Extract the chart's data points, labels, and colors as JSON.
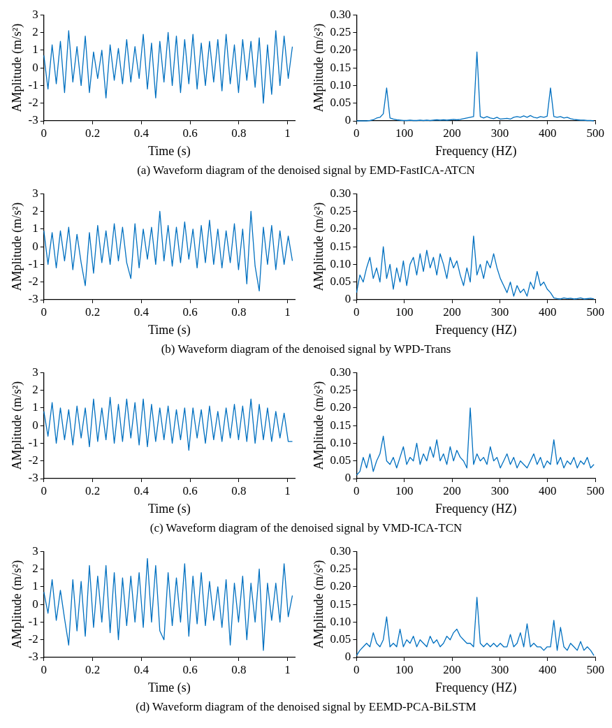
{
  "chart_data": [
    {
      "type": "line",
      "color": "#0070c0",
      "marker": "none",
      "xlabel": "Time (s)",
      "ylabel": "AMplitude (m/s²)",
      "xlim": [
        0,
        1.03
      ],
      "ylim": [
        -3,
        3
      ],
      "xticks": [
        0,
        0.2,
        0.4,
        0.6,
        0.8,
        1
      ],
      "yticks": [
        -3,
        -2,
        -1,
        0,
        1,
        2,
        3
      ],
      "annotations": [
        "(a) Waveform diagram of the denoised signal by EMD-FastICA-ATCN"
      ],
      "x": [
        0,
        0.017,
        0.034,
        0.051,
        0.068,
        0.085,
        0.102,
        0.119,
        0.136,
        0.153,
        0.17,
        0.187,
        0.204,
        0.221,
        0.238,
        0.255,
        0.272,
        0.289,
        0.306,
        0.323,
        0.34,
        0.357,
        0.374,
        0.391,
        0.408,
        0.425,
        0.442,
        0.459,
        0.476,
        0.493,
        0.51,
        0.527,
        0.544,
        0.561,
        0.578,
        0.595,
        0.612,
        0.629,
        0.646,
        0.663,
        0.68,
        0.697,
        0.714,
        0.731,
        0.748,
        0.765,
        0.782,
        0.799,
        0.816,
        0.833,
        0.85,
        0.867,
        0.884,
        0.901,
        0.918,
        0.935,
        0.952,
        0.969,
        0.986,
        1.003,
        1.02
      ],
      "values": [
        0.7,
        -1.2,
        1.3,
        -0.9,
        1.5,
        -1.4,
        2.1,
        -0.8,
        1.2,
        -1.0,
        1.8,
        -1.4,
        0.9,
        -0.6,
        1.0,
        -1.7,
        1.3,
        -0.7,
        1.1,
        -0.9,
        1.6,
        -0.8,
        1.2,
        -0.6,
        1.9,
        -1.2,
        1.4,
        -1.7,
        1.5,
        -0.8,
        2.0,
        -1.0,
        1.8,
        -1.4,
        1.6,
        -0.9,
        1.9,
        -1.2,
        1.4,
        -1.0,
        1.5,
        -0.8,
        1.6,
        -1.3,
        1.9,
        -0.9,
        1.3,
        -1.4,
        1.6,
        -0.7,
        1.5,
        -1.1,
        1.7,
        -2.0,
        1.3,
        -1.5,
        2.1,
        -1.0,
        1.8,
        -0.6,
        1.2
      ]
    },
    {
      "type": "line",
      "color": "#0070c0",
      "marker": "none",
      "xlabel": "Frequency (HZ)",
      "ylabel": "AMplitude (m/s²)",
      "xlim": [
        0,
        500
      ],
      "ylim": [
        0,
        0.3
      ],
      "xticks": [
        0,
        100,
        200,
        300,
        400,
        500
      ],
      "yticks": [
        0,
        0.05,
        {
          "value": 0.1,
          "label": "0.10"
        },
        0.15,
        {
          "value": 0.2,
          "label": "0.20"
        },
        0.25,
        {
          "value": 0.3,
          "label": "0.30"
        }
      ],
      "x": [
        0,
        7,
        14,
        21,
        28,
        35,
        42,
        49,
        56,
        63,
        70,
        77,
        84,
        91,
        98,
        105,
        112,
        119,
        126,
        133,
        140,
        147,
        154,
        161,
        168,
        175,
        182,
        189,
        196,
        203,
        210,
        217,
        224,
        231,
        238,
        245,
        252,
        259,
        266,
        273,
        280,
        287,
        294,
        301,
        308,
        315,
        322,
        329,
        336,
        343,
        350,
        357,
        364,
        371,
        378,
        385,
        392,
        399,
        406,
        413,
        420,
        427,
        434,
        441,
        448,
        455,
        462,
        469,
        476,
        483,
        490,
        497
      ],
      "values": [
        0,
        0,
        0,
        0,
        0.001,
        0.003,
        0.008,
        0.01,
        0.02,
        0.093,
        0.008,
        0.005,
        0.003,
        0.002,
        0.001,
        0.001,
        0.002,
        0.001,
        0.001,
        0.002,
        0.001,
        0.002,
        0.001,
        0.002,
        0.003,
        0.002,
        0.003,
        0.002,
        0.003,
        0.004,
        0.003,
        0.004,
        0.006,
        0.008,
        0.01,
        0.012,
        0.195,
        0.012,
        0.008,
        0.012,
        0.008,
        0.006,
        0.01,
        0.005,
        0.006,
        0.007,
        0.005,
        0.01,
        0.012,
        0.01,
        0.014,
        0.01,
        0.015,
        0.01,
        0.008,
        0.012,
        0.01,
        0.013,
        0.093,
        0.012,
        0.01,
        0.012,
        0.008,
        0.01,
        0.006,
        0.004,
        0.003,
        0.002,
        0.002,
        0.001,
        0.001,
        0
      ]
    },
    {
      "type": "line",
      "color": "#0070c0",
      "marker": "none",
      "xlabel": "Time (s)",
      "ylabel": "AMplitude (m/s²)",
      "xlim": [
        0,
        1.03
      ],
      "ylim": [
        -3,
        3
      ],
      "xticks": [
        0,
        0.2,
        0.4,
        0.6,
        0.8,
        1
      ],
      "yticks": [
        -3,
        -2,
        -1,
        0,
        1,
        2,
        3
      ],
      "annotations": [
        "(b) Waveform diagram of the denoised signal by WPD-Trans"
      ],
      "x": [
        0,
        0.017,
        0.034,
        0.051,
        0.068,
        0.085,
        0.102,
        0.119,
        0.136,
        0.153,
        0.17,
        0.187,
        0.204,
        0.221,
        0.238,
        0.255,
        0.272,
        0.289,
        0.306,
        0.323,
        0.34,
        0.357,
        0.374,
        0.391,
        0.408,
        0.425,
        0.442,
        0.459,
        0.476,
        0.493,
        0.51,
        0.527,
        0.544,
        0.561,
        0.578,
        0.595,
        0.612,
        0.629,
        0.646,
        0.663,
        0.68,
        0.697,
        0.714,
        0.731,
        0.748,
        0.765,
        0.782,
        0.799,
        0.816,
        0.833,
        0.85,
        0.867,
        0.884,
        0.901,
        0.918,
        0.935,
        0.952,
        0.969,
        0.986,
        1.003,
        1.02
      ],
      "values": [
        0.9,
        -1.0,
        0.8,
        -1.2,
        0.9,
        -0.8,
        1.1,
        -1.3,
        0.7,
        -0.9,
        -2.2,
        0.8,
        -1.5,
        1.2,
        -0.9,
        0.9,
        -1.0,
        1.3,
        -0.8,
        1.1,
        -0.9,
        -1.8,
        1.3,
        -1.2,
        1.0,
        -0.7,
        1.1,
        -1.0,
        2.0,
        -0.8,
        1.2,
        -1.1,
        1.1,
        -0.9,
        1.4,
        -0.7,
        1.0,
        -1.2,
        1.2,
        -0.9,
        1.5,
        -1.0,
        1.0,
        -1.2,
        0.9,
        -0.9,
        1.3,
        -1.3,
        1.0,
        -2.1,
        2.0,
        -1.1,
        -2.5,
        1.1,
        -1.0,
        1.2,
        -1.3,
        0.9,
        -1.0,
        0.6,
        -0.8
      ]
    },
    {
      "type": "line",
      "color": "#0070c0",
      "marker": "none",
      "xlabel": "Frequency (HZ)",
      "ylabel": "AMplitude (m/s²)",
      "xlim": [
        0,
        500
      ],
      "ylim": [
        0,
        0.3
      ],
      "xticks": [
        0,
        100,
        200,
        300,
        400,
        500
      ],
      "yticks": [
        0,
        0.05,
        {
          "value": 0.1,
          "label": "0.10"
        },
        0.15,
        {
          "value": 0.2,
          "label": "0.20"
        },
        0.25,
        {
          "value": 0.3,
          "label": "0.30"
        }
      ],
      "x": [
        0,
        7,
        14,
        21,
        28,
        35,
        42,
        49,
        56,
        63,
        70,
        77,
        84,
        91,
        98,
        105,
        112,
        119,
        126,
        133,
        140,
        147,
        154,
        161,
        168,
        175,
        182,
        189,
        196,
        203,
        210,
        217,
        224,
        231,
        238,
        245,
        252,
        259,
        266,
        273,
        280,
        287,
        294,
        301,
        308,
        315,
        322,
        329,
        336,
        343,
        350,
        357,
        364,
        371,
        378,
        385,
        392,
        399,
        406,
        413,
        420,
        427,
        434,
        441,
        448,
        455,
        462,
        469,
        476,
        483,
        490,
        497
      ],
      "values": [
        0.02,
        0.07,
        0.05,
        0.09,
        0.12,
        0.06,
        0.09,
        0.05,
        0.15,
        0.06,
        0.1,
        0.03,
        0.09,
        0.05,
        0.11,
        0.04,
        0.1,
        0.12,
        0.07,
        0.13,
        0.08,
        0.14,
        0.09,
        0.12,
        0.07,
        0.13,
        0.1,
        0.06,
        0.12,
        0.09,
        0.11,
        0.07,
        0.04,
        0.09,
        0.05,
        0.18,
        0.07,
        0.1,
        0.06,
        0.11,
        0.09,
        0.13,
        0.09,
        0.06,
        0.04,
        0.02,
        0.05,
        0.01,
        0.04,
        0.02,
        0.03,
        0.01,
        0.05,
        0.03,
        0.08,
        0.04,
        0.05,
        0.03,
        0.02,
        0.005,
        0.003,
        0.002,
        0.005,
        0.003,
        0.004,
        0.002,
        0.003,
        0.005,
        0.002,
        0.003,
        0.004,
        0.002
      ]
    },
    {
      "type": "line",
      "color": "#0070c0",
      "marker": "none",
      "xlabel": "Time (s)",
      "ylabel": "AMplitude (m/s²)",
      "xlim": [
        0,
        1.03
      ],
      "ylim": [
        -3,
        3
      ],
      "xticks": [
        0,
        0.2,
        0.4,
        0.6,
        0.8,
        1
      ],
      "yticks": [
        -3,
        -2,
        -1,
        0,
        1,
        2,
        3
      ],
      "annotations": [
        "(c) Waveform diagram of the denoised signal by VMD-ICA-TCN"
      ],
      "x": [
        0,
        0.017,
        0.034,
        0.051,
        0.068,
        0.085,
        0.102,
        0.119,
        0.136,
        0.153,
        0.17,
        0.187,
        0.204,
        0.221,
        0.238,
        0.255,
        0.272,
        0.289,
        0.306,
        0.323,
        0.34,
        0.357,
        0.374,
        0.391,
        0.408,
        0.425,
        0.442,
        0.459,
        0.476,
        0.493,
        0.51,
        0.527,
        0.544,
        0.561,
        0.578,
        0.595,
        0.612,
        0.629,
        0.646,
        0.663,
        0.68,
        0.697,
        0.714,
        0.731,
        0.748,
        0.765,
        0.782,
        0.799,
        0.816,
        0.833,
        0.85,
        0.867,
        0.884,
        0.901,
        0.918,
        0.935,
        0.952,
        0.969,
        0.986,
        1.003,
        1.02
      ],
      "values": [
        0.8,
        -0.6,
        1.3,
        -1.0,
        1.0,
        -0.8,
        0.9,
        -1.1,
        1.1,
        -0.7,
        1.0,
        -1.2,
        1.5,
        -0.9,
        1.0,
        -0.8,
        1.6,
        -1.0,
        1.2,
        -0.9,
        1.5,
        -0.7,
        1.3,
        -1.1,
        1.5,
        -1.2,
        1.2,
        -0.9,
        1.0,
        -0.8,
        1.1,
        -1.0,
        0.9,
        -0.8,
        1.0,
        -1.4,
        1.0,
        -0.7,
        0.9,
        -1.0,
        1.1,
        -0.8,
        0.8,
        -0.9,
        1.0,
        -0.7,
        1.2,
        -0.8,
        1.1,
        -0.9,
        1.5,
        -1.0,
        1.2,
        -0.8,
        1.0,
        -0.9,
        0.8,
        -0.7,
        0.7,
        -0.9,
        -0.9
      ]
    },
    {
      "type": "line",
      "color": "#0070c0",
      "marker": "none",
      "xlabel": "Frequency (HZ)",
      "ylabel": "AMplitude (m/s²)",
      "xlim": [
        0,
        500
      ],
      "ylim": [
        0,
        0.3
      ],
      "xticks": [
        0,
        100,
        200,
        300,
        400,
        500
      ],
      "yticks": [
        0,
        0.05,
        {
          "value": 0.1,
          "label": "0.10"
        },
        0.15,
        {
          "value": 0.2,
          "label": "0.20"
        },
        0.25,
        {
          "value": 0.3,
          "label": "0.30"
        }
      ],
      "x": [
        0,
        7,
        14,
        21,
        28,
        35,
        42,
        49,
        56,
        63,
        70,
        77,
        84,
        91,
        98,
        105,
        112,
        119,
        126,
        133,
        140,
        147,
        154,
        161,
        168,
        175,
        182,
        189,
        196,
        203,
        210,
        217,
        224,
        231,
        238,
        245,
        252,
        259,
        266,
        273,
        280,
        287,
        294,
        301,
        308,
        315,
        322,
        329,
        336,
        343,
        350,
        357,
        364,
        371,
        378,
        385,
        392,
        399,
        406,
        413,
        420,
        427,
        434,
        441,
        448,
        455,
        462,
        469,
        476,
        483,
        490,
        497
      ],
      "values": [
        0.01,
        0.02,
        0.06,
        0.03,
        0.07,
        0.02,
        0.05,
        0.07,
        0.12,
        0.05,
        0.04,
        0.06,
        0.03,
        0.06,
        0.09,
        0.04,
        0.06,
        0.05,
        0.1,
        0.04,
        0.07,
        0.05,
        0.09,
        0.06,
        0.11,
        0.05,
        0.07,
        0.04,
        0.09,
        0.05,
        0.08,
        0.06,
        0.05,
        0.03,
        0.2,
        0.04,
        0.07,
        0.05,
        0.06,
        0.04,
        0.09,
        0.05,
        0.06,
        0.03,
        0.05,
        0.07,
        0.04,
        0.06,
        0.03,
        0.05,
        0.04,
        0.03,
        0.05,
        0.07,
        0.04,
        0.06,
        0.03,
        0.05,
        0.04,
        0.11,
        0.04,
        0.06,
        0.03,
        0.05,
        0.04,
        0.06,
        0.03,
        0.05,
        0.04,
        0.06,
        0.03,
        0.04
      ]
    },
    {
      "type": "line",
      "color": "#0070c0",
      "marker": "none",
      "xlabel": "Time (s)",
      "ylabel": "AMplitude (m/s²)",
      "xlim": [
        0,
        1.03
      ],
      "ylim": [
        -3,
        3
      ],
      "xticks": [
        0,
        0.2,
        0.4,
        0.6,
        0.8,
        1
      ],
      "yticks": [
        -3,
        -2,
        -1,
        0,
        1,
        2,
        3
      ],
      "annotations": [
        "(d) Waveform diagram of the denoised signal by EEMD-PCA-BiLSTM"
      ],
      "x": [
        0,
        0.017,
        0.034,
        0.051,
        0.068,
        0.085,
        0.102,
        0.119,
        0.136,
        0.153,
        0.17,
        0.187,
        0.204,
        0.221,
        0.238,
        0.255,
        0.272,
        0.289,
        0.306,
        0.323,
        0.34,
        0.357,
        0.374,
        0.391,
        0.408,
        0.425,
        0.442,
        0.459,
        0.476,
        0.493,
        0.51,
        0.527,
        0.544,
        0.561,
        0.578,
        0.595,
        0.612,
        0.629,
        0.646,
        0.663,
        0.68,
        0.697,
        0.714,
        0.731,
        0.748,
        0.765,
        0.782,
        0.799,
        0.816,
        0.833,
        0.85,
        0.867,
        0.884,
        0.901,
        0.918,
        0.935,
        0.952,
        0.969,
        0.986,
        1.003,
        1.02
      ],
      "values": [
        0.7,
        -0.5,
        1.4,
        -0.9,
        0.8,
        -0.8,
        -2.3,
        1.4,
        -1.5,
        1.3,
        -1.8,
        2.2,
        -1.3,
        1.6,
        -1.0,
        2.2,
        -1.6,
        1.8,
        -2.0,
        1.5,
        -1.2,
        1.6,
        -1.0,
        1.8,
        -1.3,
        2.6,
        -1.0,
        2.2,
        -1.5,
        -2.0,
        1.8,
        -1.2,
        1.5,
        -1.0,
        2.3,
        -1.8,
        1.6,
        -1.1,
        1.8,
        -1.2,
        1.3,
        -0.9,
        1.0,
        -1.3,
        1.4,
        -2.3,
        1.2,
        -1.0,
        1.6,
        -2.0,
        1.2,
        -1.0,
        2.0,
        -2.6,
        1.2,
        -0.9,
        1.2,
        -1.0,
        2.3,
        -0.7,
        0.5
      ]
    },
    {
      "type": "line",
      "color": "#0070c0",
      "marker": "none",
      "xlabel": "Frequency (HZ)",
      "ylabel": "AMplitude (m/s²)",
      "xlim": [
        0,
        500
      ],
      "ylim": [
        0,
        0.3
      ],
      "xticks": [
        0,
        100,
        200,
        300,
        400,
        500
      ],
      "yticks": [
        0,
        0.05,
        {
          "value": 0.1,
          "label": "0.10"
        },
        0.15,
        {
          "value": 0.2,
          "label": "0.20"
        },
        0.25,
        {
          "value": 0.3,
          "label": "0.30"
        }
      ],
      "x": [
        0,
        7,
        14,
        21,
        28,
        35,
        42,
        49,
        56,
        63,
        70,
        77,
        84,
        91,
        98,
        105,
        112,
        119,
        126,
        133,
        140,
        147,
        154,
        161,
        168,
        175,
        182,
        189,
        196,
        203,
        210,
        217,
        224,
        231,
        238,
        245,
        252,
        259,
        266,
        273,
        280,
        287,
        294,
        301,
        308,
        315,
        322,
        329,
        336,
        343,
        350,
        357,
        364,
        371,
        378,
        385,
        392,
        399,
        406,
        413,
        420,
        427,
        434,
        441,
        448,
        455,
        462,
        469,
        476,
        483,
        490,
        497
      ],
      "values": [
        0.005,
        0.02,
        0.03,
        0.04,
        0.03,
        0.07,
        0.04,
        0.03,
        0.05,
        0.115,
        0.03,
        0.04,
        0.03,
        0.08,
        0.03,
        0.05,
        0.04,
        0.06,
        0.03,
        0.05,
        0.04,
        0.03,
        0.06,
        0.04,
        0.05,
        0.03,
        0.04,
        0.06,
        0.05,
        0.07,
        0.08,
        0.06,
        0.05,
        0.04,
        0.04,
        0.03,
        0.17,
        0.04,
        0.03,
        0.04,
        0.03,
        0.04,
        0.03,
        0.04,
        0.03,
        0.03,
        0.065,
        0.03,
        0.04,
        0.07,
        0.03,
        0.095,
        0.03,
        0.04,
        0.03,
        0.03,
        0.02,
        0.03,
        0.03,
        0.105,
        0.02,
        0.085,
        0.03,
        0.02,
        0.04,
        0.03,
        0.02,
        0.045,
        0.02,
        0.03,
        0.02,
        0.005
      ]
    }
  ]
}
